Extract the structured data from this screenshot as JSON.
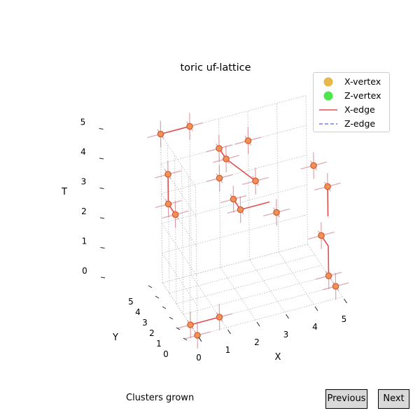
{
  "chart_data": {
    "type": "scatter3d",
    "title": "toric uf-lattice",
    "xlabel": "X",
    "ylabel": "Y",
    "zlabel": "T",
    "xlim": [
      0,
      5
    ],
    "ylim": [
      0,
      5
    ],
    "zlim": [
      0,
      5
    ],
    "x_ticks": [
      "0",
      "1",
      "2",
      "3",
      "4",
      "5"
    ],
    "y_ticks": [
      "0",
      "1",
      "2",
      "3",
      "4",
      "5"
    ],
    "z_ticks": [
      "0",
      "1",
      "2",
      "3",
      "4",
      "5"
    ],
    "grid": true,
    "legend_position": "upper right",
    "legend": [
      {
        "label": "X-vertex",
        "kind": "marker",
        "color": "#e6b84a"
      },
      {
        "label": "Z-vertex",
        "kind": "marker",
        "color": "#4de64d"
      },
      {
        "label": "X-edge",
        "kind": "line-solid",
        "color": "#e05050"
      },
      {
        "label": "Z-edge",
        "kind": "line-dashed",
        "color": "#7b7bdd"
      }
    ],
    "vertex_style": {
      "fill": "#f0905a",
      "edge": "#d05a2a"
    },
    "vertices": [
      {
        "x": 0,
        "y": 5,
        "t": 5
      },
      {
        "x": 1,
        "y": 5,
        "t": 5
      },
      {
        "x": 0,
        "y": 4,
        "t": 4
      },
      {
        "x": 0,
        "y": 3,
        "t": 3
      },
      {
        "x": 0,
        "y": 4,
        "t": 3
      },
      {
        "x": 2,
        "y": 5,
        "t": 4
      },
      {
        "x": 2,
        "y": 4,
        "t": 4
      },
      {
        "x": 3,
        "y": 5,
        "t": 4
      },
      {
        "x": 2,
        "y": 5,
        "t": 3
      },
      {
        "x": 3,
        "y": 4,
        "t": 3
      },
      {
        "x": 2,
        "y": 3,
        "t": 3
      },
      {
        "x": 2,
        "y": 2,
        "t": 3
      },
      {
        "x": 5,
        "y": 4,
        "t": 3
      },
      {
        "x": 5,
        "y": 2,
        "t": 3
      },
      {
        "x": 0,
        "y": 1,
        "t": 0
      },
      {
        "x": 0,
        "y": 0,
        "t": 0
      },
      {
        "x": 1,
        "y": 1,
        "t": 0
      },
      {
        "x": 5,
        "y": 3,
        "t": 1
      },
      {
        "x": 5,
        "y": 2,
        "t": 0
      },
      {
        "x": 5,
        "y": 1,
        "t": 0
      },
      {
        "x": 3,
        "y": 1,
        "t": 3
      }
    ],
    "edges": [
      {
        "from": [
          0,
          5,
          5
        ],
        "to": [
          1,
          5,
          5
        ],
        "active": true
      },
      {
        "from": [
          0,
          4,
          3
        ],
        "to": [
          0,
          3,
          3
        ],
        "active": true
      },
      {
        "from": [
          0,
          4,
          3
        ],
        "to": [
          0,
          4,
          4
        ],
        "active": true
      },
      {
        "from": [
          2,
          5,
          4
        ],
        "to": [
          2,
          4,
          4
        ],
        "active": true
      },
      {
        "from": [
          2,
          4,
          4
        ],
        "to": [
          3,
          4,
          3
        ],
        "active": true
      },
      {
        "from": [
          2,
          3,
          3
        ],
        "to": [
          2,
          2,
          3
        ],
        "active": true
      },
      {
        "from": [
          2,
          2,
          3
        ],
        "to": [
          3,
          2,
          3
        ],
        "active": true
      },
      {
        "from": [
          5,
          2,
          3
        ],
        "to": [
          5,
          2,
          2
        ],
        "active": true
      },
      {
        "from": [
          5,
          3,
          1
        ],
        "to": [
          5,
          2,
          1
        ],
        "active": true
      },
      {
        "from": [
          5,
          2,
          0
        ],
        "to": [
          5,
          2,
          1
        ],
        "active": true
      },
      {
        "from": [
          0,
          1,
          0
        ],
        "to": [
          1,
          1,
          0
        ],
        "active": true
      }
    ]
  },
  "status_text": "Clusters grown",
  "buttons": {
    "previous": "Previous",
    "next": "Next"
  }
}
